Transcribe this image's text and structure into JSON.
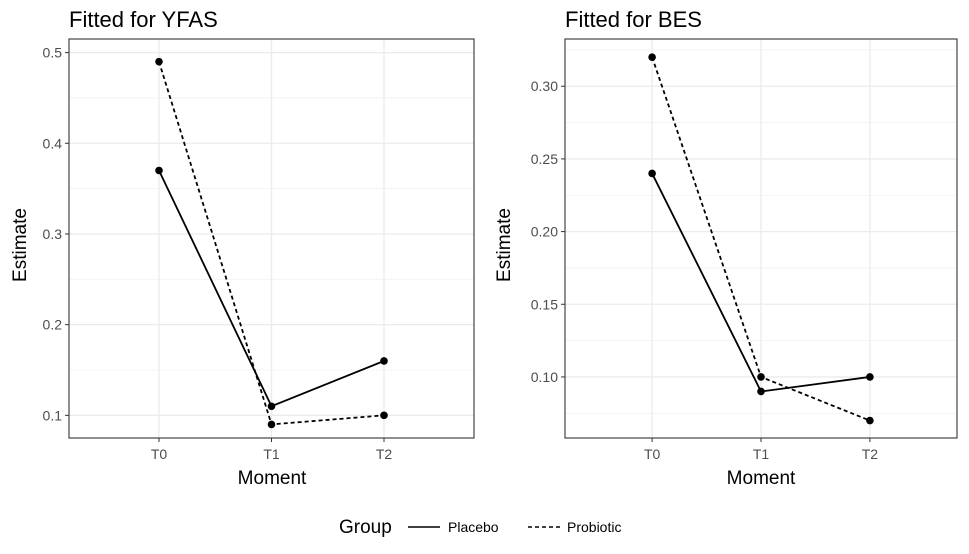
{
  "colors": {
    "grid_major": "#ebebeb",
    "grid_minor": "#f2f2f2",
    "panel_border": "#333333",
    "series": "#000000",
    "tick_text": "#4d4d4d"
  },
  "legend": {
    "title": "Group",
    "items": [
      {
        "label": "Placebo",
        "linestyle": "solid"
      },
      {
        "label": "Probiotic",
        "linestyle": "dashed"
      }
    ]
  },
  "chart_data": [
    {
      "type": "line",
      "title": "Fitted for YFAS",
      "xlabel": "Moment",
      "ylabel": "Estimate",
      "categories": [
        "T0",
        "T1",
        "T2"
      ],
      "ylim": [
        0.075,
        0.515
      ],
      "yticks": [
        0.1,
        0.2,
        0.3,
        0.4,
        0.5
      ],
      "ytick_labels": [
        "0.1",
        "0.2",
        "0.3",
        "0.4",
        "0.5"
      ],
      "series": [
        {
          "name": "Placebo",
          "linestyle": "solid",
          "values": [
            0.37,
            0.11,
            0.16
          ]
        },
        {
          "name": "Probiotic",
          "linestyle": "dashed",
          "values": [
            0.49,
            0.09,
            0.1
          ]
        }
      ]
    },
    {
      "type": "line",
      "title": "Fitted for BES",
      "xlabel": "Moment",
      "ylabel": "Estimate",
      "categories": [
        "T0",
        "T1",
        "T2"
      ],
      "ylim": [
        0.058,
        0.3325
      ],
      "yticks": [
        0.1,
        0.15,
        0.2,
        0.25,
        0.3
      ],
      "ytick_labels": [
        "0.10",
        "0.15",
        "0.20",
        "0.25",
        "0.30"
      ],
      "series": [
        {
          "name": "Placebo",
          "linestyle": "solid",
          "values": [
            0.24,
            0.09,
            0.1
          ]
        },
        {
          "name": "Probiotic",
          "linestyle": "dashed",
          "values": [
            0.32,
            0.1,
            0.07
          ]
        }
      ]
    }
  ]
}
